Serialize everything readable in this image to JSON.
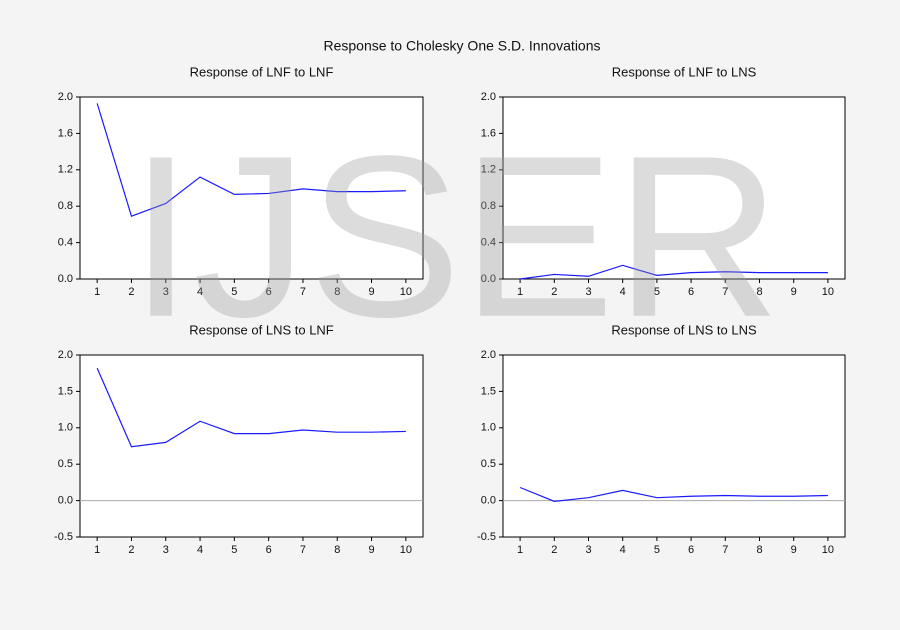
{
  "title": "Response to Cholesky One S.D. Innovations",
  "watermark": "IJSER",
  "chart_data": [
    {
      "type": "line",
      "title": "Response of LNF to LNF",
      "x": [
        1,
        2,
        3,
        4,
        5,
        6,
        7,
        8,
        9,
        10
      ],
      "xlim": [
        0.5,
        10.5
      ],
      "xticks": [
        1,
        2,
        3,
        4,
        5,
        6,
        7,
        8,
        9,
        10
      ],
      "ylim": [
        0,
        2
      ],
      "yticks": [
        {
          "value": 0,
          "label": "0.0"
        },
        0.4,
        0.8,
        1.2,
        1.6,
        {
          "value": 2,
          "label": "2.0"
        }
      ],
      "values": [
        1.93,
        0.69,
        0.83,
        1.12,
        0.93,
        0.94,
        0.99,
        0.96,
        0.96,
        0.97
      ],
      "color": "#1a1aff",
      "zero_line": false
    },
    {
      "type": "line",
      "title": "Response of LNF to LNS",
      "x": [
        1,
        2,
        3,
        4,
        5,
        6,
        7,
        8,
        9,
        10
      ],
      "xlim": [
        0.5,
        10.5
      ],
      "xticks": [
        1,
        2,
        3,
        4,
        5,
        6,
        7,
        8,
        9,
        10
      ],
      "ylim": [
        0,
        2
      ],
      "yticks": [
        {
          "value": 0,
          "label": "0.0"
        },
        0.4,
        0.8,
        1.2,
        1.6,
        {
          "value": 2,
          "label": "2.0"
        }
      ],
      "values": [
        0.0,
        0.05,
        0.03,
        0.15,
        0.04,
        0.07,
        0.08,
        0.07,
        0.07,
        0.07
      ],
      "color": "#1a1aff",
      "zero_line": false
    },
    {
      "type": "line",
      "title": "Response of LNS to LNF",
      "x": [
        1,
        2,
        3,
        4,
        5,
        6,
        7,
        8,
        9,
        10
      ],
      "xlim": [
        0.5,
        10.5
      ],
      "xticks": [
        1,
        2,
        3,
        4,
        5,
        6,
        7,
        8,
        9,
        10
      ],
      "ylim": [
        -0.5,
        2
      ],
      "yticks": [
        -0.5,
        {
          "value": 0,
          "label": "0.0"
        },
        0.5,
        {
          "value": 1,
          "label": "1.0"
        },
        1.5,
        {
          "value": 2,
          "label": "2.0"
        }
      ],
      "values": [
        1.82,
        0.74,
        0.8,
        1.09,
        0.92,
        0.92,
        0.97,
        0.94,
        0.94,
        0.95
      ],
      "color": "#1a1aff",
      "zero_line": true
    },
    {
      "type": "line",
      "title": "Response of LNS to LNS",
      "x": [
        1,
        2,
        3,
        4,
        5,
        6,
        7,
        8,
        9,
        10
      ],
      "xlim": [
        0.5,
        10.5
      ],
      "xticks": [
        1,
        2,
        3,
        4,
        5,
        6,
        7,
        8,
        9,
        10
      ],
      "ylim": [
        -0.5,
        2
      ],
      "yticks": [
        -0.5,
        {
          "value": 0,
          "label": "0.0"
        },
        0.5,
        {
          "value": 1,
          "label": "1.0"
        },
        1.5,
        {
          "value": 2,
          "label": "2.0"
        }
      ],
      "values": [
        0.18,
        -0.01,
        0.04,
        0.14,
        0.04,
        0.06,
        0.07,
        0.06,
        0.06,
        0.07
      ],
      "color": "#1a1aff",
      "zero_line": true
    }
  ]
}
